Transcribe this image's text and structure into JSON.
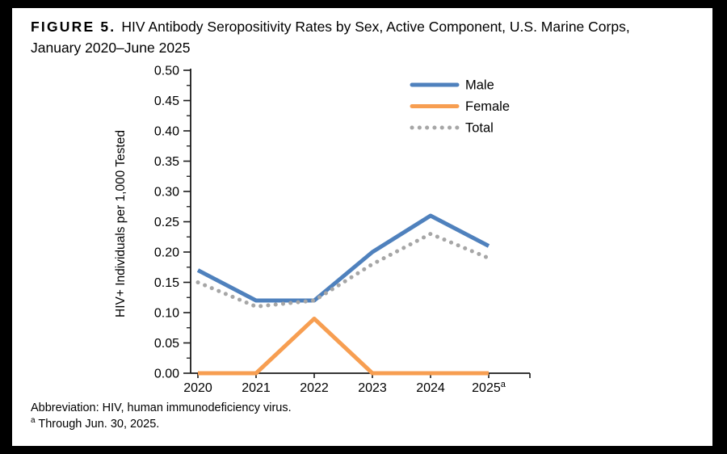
{
  "figure": {
    "label": "FIGURE 5.",
    "title_line1": "HIV Antibody Seropositivity Rates by Sex, Active Component, U.S. Marine Corps,",
    "title_line2": "January 2020–June 2025"
  },
  "footnotes": {
    "abbreviation": "Abbreviation: HIV, human immunodeficiency virus.",
    "note_marker": "a",
    "note_text": "Through Jun. 30, 2025."
  },
  "chart_data": {
    "type": "line",
    "title": "HIV Antibody Seropositivity Rates by Sex, Active Component, U.S. Marine Corps, January 2020–June 2025",
    "categories": [
      "2020",
      "2021",
      "2022",
      "2023",
      "2024",
      "2025"
    ],
    "x_last_superscript": "a",
    "series": [
      {
        "name": "Male",
        "color": "#4F81BD",
        "style": "solid",
        "values": [
          0.17,
          0.12,
          0.12,
          0.2,
          0.26,
          0.21
        ]
      },
      {
        "name": "Female",
        "color": "#F79E51",
        "style": "solid",
        "values": [
          0.0,
          0.0,
          0.09,
          0.0,
          0.0,
          0.0
        ]
      },
      {
        "name": "Total",
        "color": "#A6A6A6",
        "style": "dotted",
        "values": [
          0.15,
          0.11,
          0.12,
          0.18,
          0.23,
          0.19
        ]
      }
    ],
    "xlabel": "",
    "ylabel": "HIV+ Individuals per 1,000 Tested",
    "ylim": [
      0,
      0.5
    ],
    "ytick_step": 0.05,
    "ytick_minor_step": 0.025,
    "grid": false,
    "legend_position": "top-right",
    "axis_color": "#1a1a1a"
  }
}
